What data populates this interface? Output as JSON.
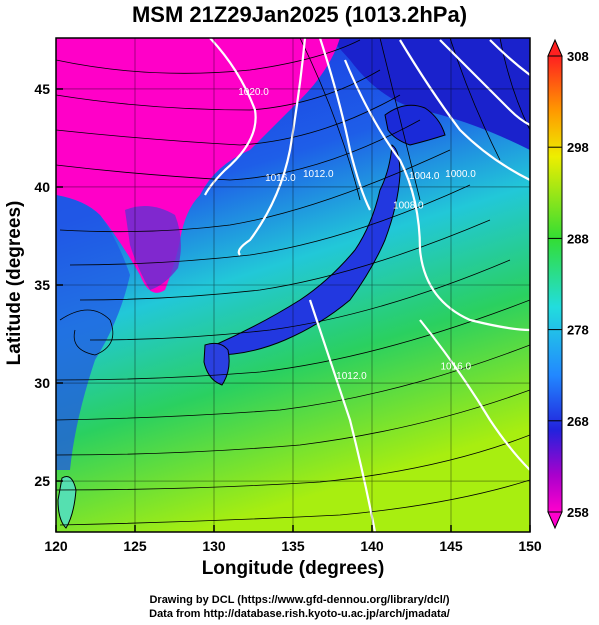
{
  "title": "MSM 21Z29Jan2025 (1013.2hPa)",
  "xaxis": {
    "label": "Longitude (degrees)",
    "ticks": [
      "120",
      "125",
      "130",
      "135",
      "140",
      "145",
      "150"
    ],
    "range": [
      120,
      150
    ]
  },
  "yaxis": {
    "label": "Latitude  (degrees)",
    "ticks": [
      "25",
      "30",
      "35",
      "40",
      "45"
    ],
    "range": [
      22.4,
      47.6
    ]
  },
  "colorbar": {
    "ticks": [
      "308",
      "298",
      "288",
      "278",
      "268",
      "258"
    ],
    "range": [
      258,
      308
    ]
  },
  "isobars": [
    {
      "label": "1020.0",
      "lat": 44.7,
      "lon": 132.5
    },
    {
      "label": "1016.0",
      "lat": 40.3,
      "lon": 134.2
    },
    {
      "label": "1012.0",
      "lat": 40.5,
      "lon": 136.6
    },
    {
      "label": "1008.0",
      "lat": 38.9,
      "lon": 142.3
    },
    {
      "label": "1004.0",
      "lat": 40.4,
      "lon": 143.3
    },
    {
      "label": "1000.0",
      "lat": 40.5,
      "lon": 145.6
    },
    {
      "label": "1012.0",
      "lat": 30.2,
      "lon": 138.7
    },
    {
      "label": "1016.0",
      "lat": 30.7,
      "lon": 145.3
    }
  ],
  "credits": {
    "line1": "Drawing by DCL (https://www.gfd-dennou.org/library/dcl/)",
    "line2": "Data from http://database.rish.kyoto-u.ac.jp/arch/jmadata/"
  },
  "colors": {
    "cold": "#ff00cc",
    "cool": "#1a33dd",
    "mid": "#22ccdd",
    "warm": "#22cc55",
    "hot": "#99ee00"
  }
}
